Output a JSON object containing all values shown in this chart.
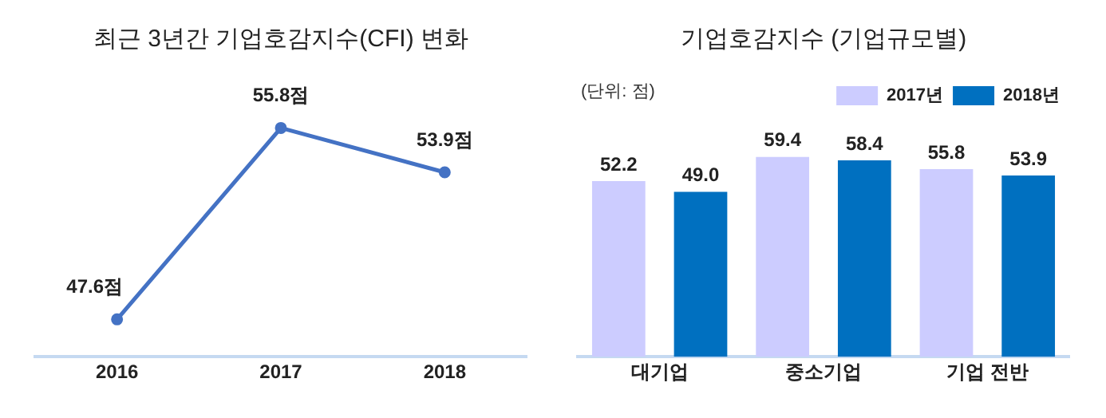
{
  "chart_data": [
    {
      "type": "line",
      "title": "최근 3년간 기업호감지수(CFI) 변화",
      "categories": [
        "2016",
        "2017",
        "2018"
      ],
      "series": [
        {
          "color": "#4472c4",
          "values": [
            47.6,
            55.8,
            53.9
          ],
          "value_labels": [
            "47.6점",
            "55.8점",
            "53.9점"
          ]
        }
      ],
      "tick_labels": "x",
      "marker": "circle",
      "grid": false,
      "legend": false
    },
    {
      "type": "bar",
      "title": "기업호감지수 (기업규모별)",
      "categories": [
        "대기업",
        "중소기업",
        "기업 전반"
      ],
      "series": [
        {
          "name": "2017년",
          "color": "#ccccff",
          "values": [
            52.2,
            59.4,
            55.8
          ],
          "value_labels": [
            "52.2",
            "59.4",
            "55.8"
          ]
        },
        {
          "name": "2018년",
          "color": "#0070c0",
          "values": [
            49.0,
            58.4,
            53.9
          ],
          "value_labels": [
            "49.0",
            "58.4",
            "53.9"
          ]
        }
      ],
      "tick_labels": "x",
      "annotations": [
        "(단위: 점)"
      ],
      "grid": false,
      "legend": "top right"
    }
  ]
}
